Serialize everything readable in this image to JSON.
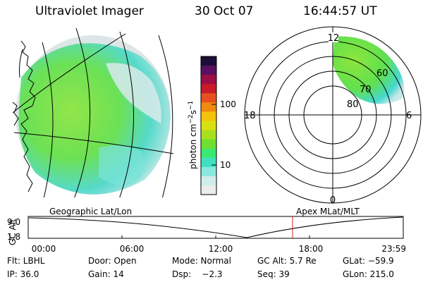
{
  "header": {
    "instrument": "Ultraviolet Imager",
    "date": "30 Oct 07",
    "time": "16:44:57 UT"
  },
  "colorbar": {
    "unit_label": "photon cm",
    "unit_exp1": "−2",
    "unit_s": "s",
    "unit_exp2": "−1",
    "ticks": [
      "100",
      "10"
    ],
    "colors": [
      "#1b0f3a",
      "#5a1060",
      "#9b0f45",
      "#c81a28",
      "#e85020",
      "#f08a10",
      "#f4c20a",
      "#d8e010",
      "#a8e020",
      "#6fe030",
      "#3ce870",
      "#40e0c0",
      "#8ae8e0",
      "#d0ecec",
      "#ececec"
    ]
  },
  "polar": {
    "mlt_labels": [
      "12",
      "18",
      "6",
      "0"
    ],
    "lat_labels": [
      "60",
      "70",
      "80"
    ]
  },
  "timeline": {
    "ylabel": "GC Alt",
    "y_ticks": [
      "9.0",
      "1.8"
    ],
    "left_title": "Geographic Lat/Lon",
    "right_title": "Apex MLat/MLT",
    "x_ticks": [
      "00:00",
      "06:00",
      "12:00",
      "18:00",
      "23:59"
    ],
    "marker_color": "#d02020"
  },
  "info": {
    "filter": "Flt: LBHL",
    "door": "Door: Open",
    "mode": "Mode: Normal",
    "gc_alt": "GC Alt: 5.7 Re",
    "glat": "GLat: −59.9",
    "ip": "IP: 36.0",
    "gain": "Gain: 14",
    "dsp": "Dsp:    −2.3",
    "seq": "Seq: 39",
    "glon": "GLon: 215.0"
  }
}
